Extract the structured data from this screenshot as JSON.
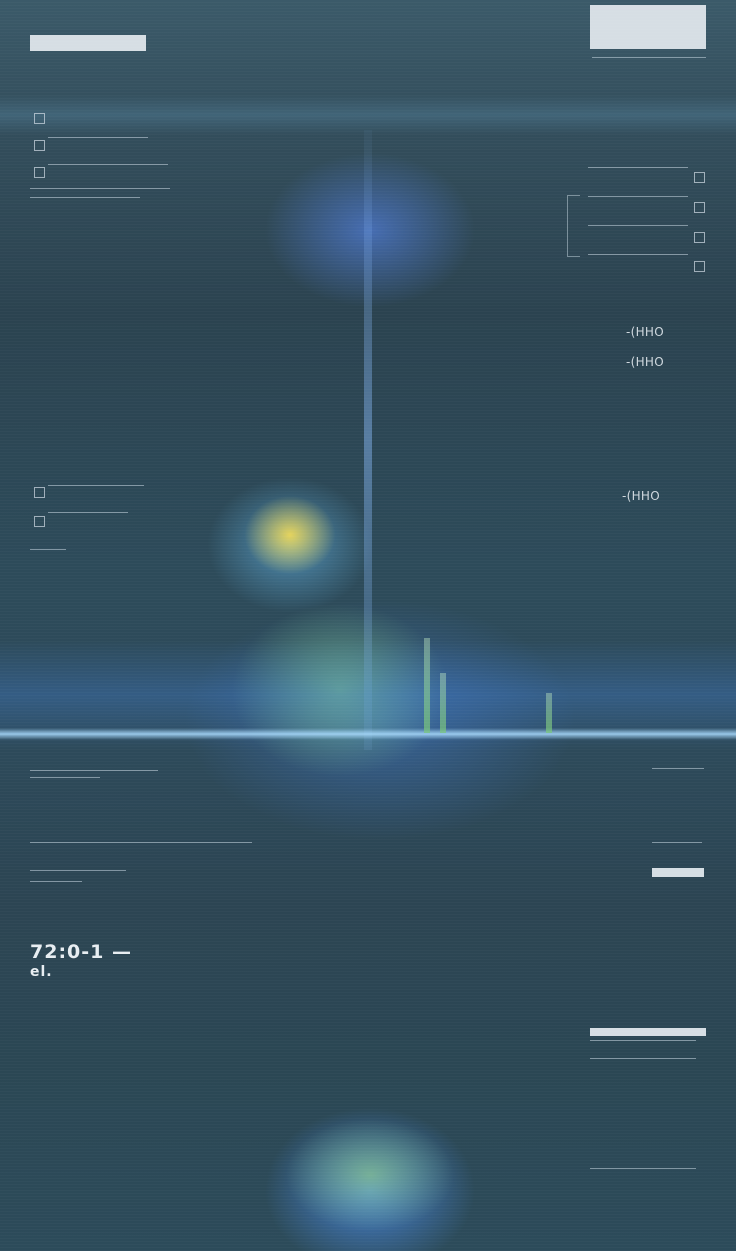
{
  "hud": {
    "top_left_label": "",
    "top_right_label": "",
    "readout_primary": "72:0-1 —",
    "readout_secondary": "el.",
    "right_values": [
      "-(HHO",
      "-(HHO",
      "-(HHO"
    ]
  },
  "colors": {
    "background": "#2f4a57",
    "hud_text": "#cfd8de",
    "glow_blue": "#5a8cff",
    "glow_green": "#a0dc78",
    "glow_yellow": "#ffe150"
  },
  "icons": [
    "checkbox-icon",
    "square-marker-icon"
  ]
}
